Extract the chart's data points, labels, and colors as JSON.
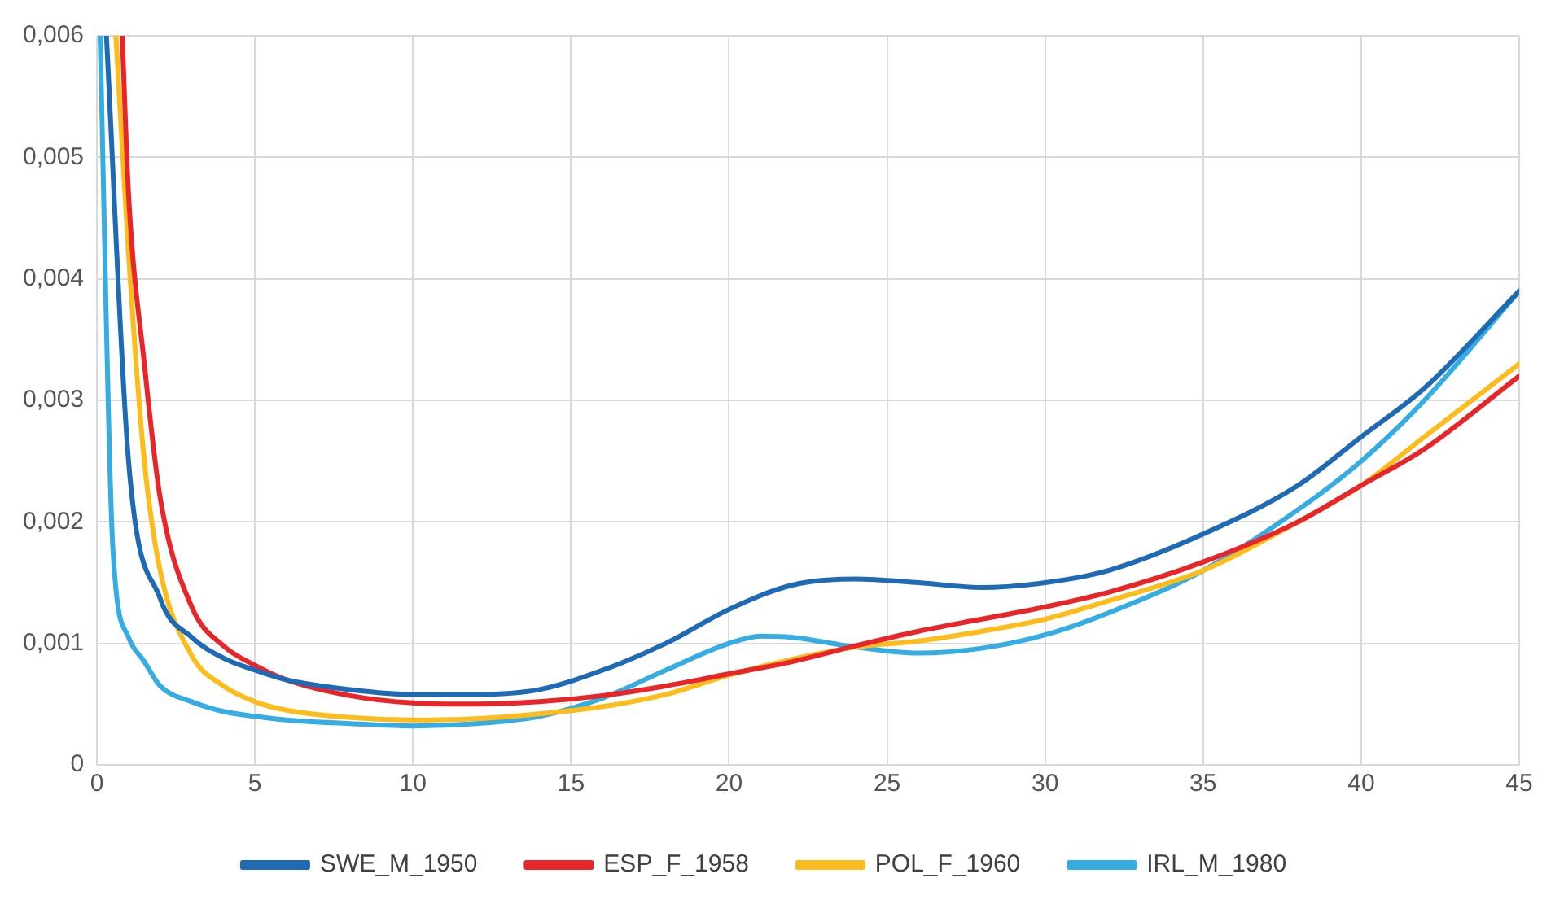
{
  "chart_data": {
    "type": "line",
    "xlim": [
      0,
      45
    ],
    "xticks": [
      0,
      5,
      10,
      15,
      20,
      25,
      30,
      35,
      40,
      45
    ],
    "ylim": [
      0,
      0.006
    ],
    "yticks": [
      0,
      {
        "value": 0.001,
        "label": "0,001"
      },
      {
        "value": 0.002,
        "label": "0,002"
      },
      {
        "value": 0.003,
        "label": "0,003"
      },
      {
        "value": 0.004,
        "label": "0,004"
      },
      {
        "value": 0.005,
        "label": "0,005"
      },
      {
        "value": 0.006,
        "label": "0,006"
      }
    ],
    "grid": true,
    "legend": "bottom",
    "marker": "none",
    "line_style": "solid",
    "series": [
      {
        "name": "SWE_M_1950",
        "color": "#1f6ab4",
        "x": [
          0.3,
          1,
          2,
          3,
          4,
          5,
          6,
          8,
          10,
          12,
          14,
          16,
          18,
          20,
          22,
          24,
          26,
          28,
          30,
          32,
          35,
          38,
          40,
          42,
          45
        ],
        "values": [
          0.006,
          0.0025,
          0.00137,
          0.00105,
          0.00088,
          0.00078,
          0.0007,
          0.00062,
          0.00058,
          0.00058,
          0.00062,
          0.00078,
          0.001,
          0.00128,
          0.00148,
          0.00153,
          0.0015,
          0.00146,
          0.0015,
          0.0016,
          0.0019,
          0.0023,
          0.0027,
          0.0031,
          0.0039
        ]
      },
      {
        "name": "ESP_F_1958",
        "color": "#e8262a",
        "x": [
          0.8,
          1,
          1.5,
          2,
          3,
          4,
          5,
          6,
          8,
          10,
          12,
          14,
          16,
          18,
          20,
          22,
          24,
          26,
          28,
          30,
          32,
          35,
          38,
          40,
          42,
          45
        ],
        "values": [
          0.006,
          0.0047,
          0.0033,
          0.0022,
          0.0013,
          0.00098,
          0.00082,
          0.0007,
          0.00057,
          0.00051,
          0.0005,
          0.00052,
          0.00057,
          0.00065,
          0.00075,
          0.00085,
          0.00098,
          0.0011,
          0.0012,
          0.0013,
          0.00142,
          0.00167,
          0.002,
          0.0023,
          0.0026,
          0.0032
        ]
      },
      {
        "name": "POL_F_1960",
        "color": "#fbbc1c",
        "x": [
          0.6,
          1,
          1.5,
          2,
          3,
          4,
          5,
          6,
          8,
          10,
          12,
          14,
          16,
          18,
          20,
          22,
          24,
          26,
          28,
          30,
          32,
          35,
          38,
          40,
          42,
          45
        ],
        "values": [
          0.006,
          0.0042,
          0.0025,
          0.0016,
          0.0009,
          0.00065,
          0.00052,
          0.00045,
          0.00039,
          0.00037,
          0.00038,
          0.00042,
          0.00048,
          0.00058,
          0.00074,
          0.00087,
          0.00097,
          0.00102,
          0.0011,
          0.0012,
          0.00135,
          0.0016,
          0.002,
          0.0023,
          0.0027,
          0.0033
        ]
      },
      {
        "name": "IRL_M_1980",
        "color": "#35ade2",
        "x": [
          0.1,
          0.5,
          1,
          1.5,
          2,
          3,
          4,
          5,
          6,
          8,
          10,
          12,
          14,
          16,
          18,
          20,
          21,
          22,
          24,
          26,
          28,
          30,
          32,
          35,
          38,
          40,
          42,
          45
        ],
        "values": [
          0.006,
          0.0018,
          0.00105,
          0.00085,
          0.00065,
          0.00052,
          0.00044,
          0.0004,
          0.00037,
          0.00034,
          0.00032,
          0.00034,
          0.0004,
          0.00055,
          0.00078,
          0.001,
          0.00106,
          0.00105,
          0.00097,
          0.00092,
          0.00096,
          0.00107,
          0.00125,
          0.0016,
          0.0021,
          0.0025,
          0.003,
          0.0039
        ]
      }
    ]
  }
}
